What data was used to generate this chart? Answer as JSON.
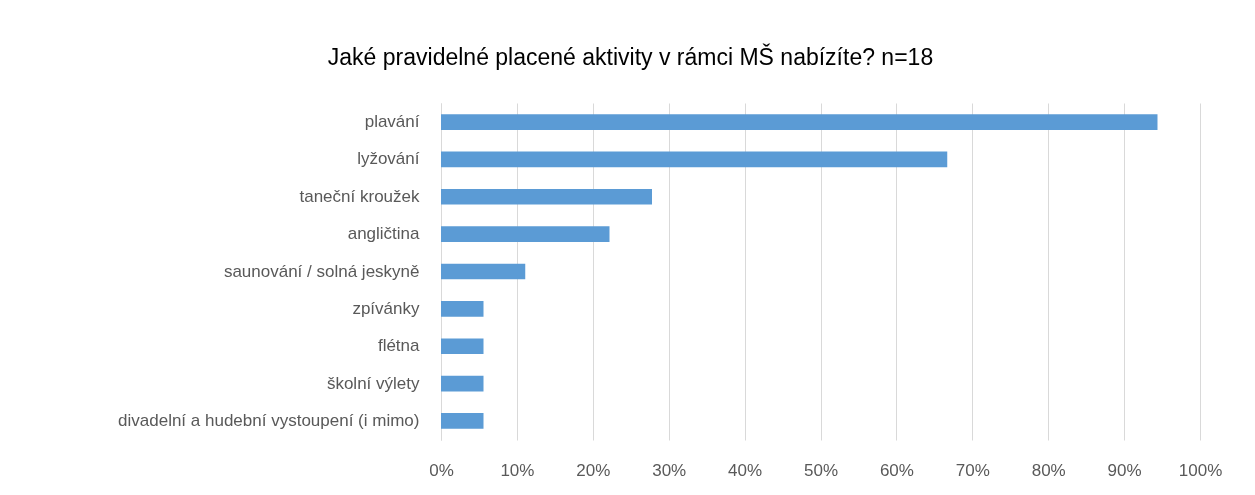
{
  "chart_data": {
    "type": "bar",
    "orientation": "horizontal",
    "title": "Jaké pravidelné placené aktivity v rámci MŠ nabízíte? n=18",
    "categories": [
      "plavání",
      "lyžování",
      "taneční kroužek",
      "angličtina",
      "saunování / solná jeskyně",
      "zpívánky",
      "flétna",
      "školní výlety",
      "divadelní a hudební vystoupení (i mimo)"
    ],
    "values": [
      94.4,
      66.7,
      27.8,
      22.2,
      11.1,
      5.6,
      5.6,
      5.6,
      5.6
    ],
    "color": "#5b9bd5",
    "xlim": [
      0,
      100
    ],
    "xticks": [
      {
        "value": 0,
        "label": "0%"
      },
      {
        "value": 10,
        "label": "10%"
      },
      {
        "value": 20,
        "label": "20%"
      },
      {
        "value": 30,
        "label": "30%"
      },
      {
        "value": 40,
        "label": "40%"
      },
      {
        "value": 50,
        "label": "50%"
      },
      {
        "value": 60,
        "label": "60%"
      },
      {
        "value": 70,
        "label": "70%"
      },
      {
        "value": 80,
        "label": "80%"
      },
      {
        "value": 90,
        "label": "90%"
      },
      {
        "value": 100,
        "label": "100%"
      }
    ],
    "grid": "x"
  }
}
